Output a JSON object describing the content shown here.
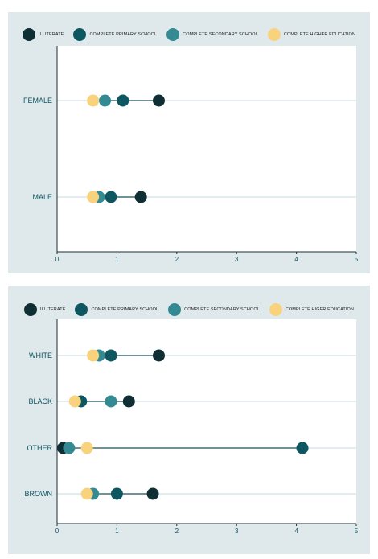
{
  "colors": {
    "panel_bg": "#dfe9ec",
    "plot_bg": "#ffffff",
    "axis": "#1a2e36",
    "gridline": "#c6dbe0",
    "connector": "#1f4e5b",
    "illiterate": "#0f2f35",
    "primary": "#0e5660",
    "secondary": "#348a92",
    "higher": "#f8d27c"
  },
  "chart_data": [
    {
      "type": "dot",
      "legend": [
        "ILLITERATE",
        "COMPLETE PRIMARY SCHOOL",
        "COMPLETE SECONDARY SCHOOL",
        "COMPLETE HIGHER EDUCATION"
      ],
      "legend_placement": "top",
      "categories": [
        "FEMALE",
        "MALE"
      ],
      "xlim": [
        0,
        5
      ],
      "xticks": [
        "0",
        "1",
        "2",
        "3",
        "4",
        "5"
      ],
      "grid": true,
      "series": [
        {
          "name": "ILLITERATE",
          "color_key": "illiterate",
          "values": [
            1.7,
            1.4
          ]
        },
        {
          "name": "COMPLETE PRIMARY SCHOOL",
          "color_key": "primary",
          "values": [
            1.1,
            0.9
          ]
        },
        {
          "name": "COMPLETE SECONDARY SCHOOL",
          "color_key": "secondary",
          "values": [
            0.8,
            0.7
          ]
        },
        {
          "name": "COMPLETE HIGHER EDUCATION",
          "color_key": "higher",
          "values": [
            0.6,
            0.6
          ]
        }
      ]
    },
    {
      "type": "dot",
      "legend": [
        "ILLITERATE",
        "COMPLETE PRIMARY SCHOOL",
        "COMPLETE SECONDARY SCHOOL",
        "COMPLETE HIGER EDUCATION"
      ],
      "legend_placement": "top",
      "categories": [
        "WHITE",
        "BLACK",
        "OTHER",
        "BROWN"
      ],
      "xlim": [
        0,
        5
      ],
      "xticks": [
        "0",
        "1",
        "2",
        "3",
        "4",
        "5"
      ],
      "grid": true,
      "series": [
        {
          "name": "ILLITERATE",
          "color_key": "illiterate",
          "values": [
            1.7,
            1.2,
            0.1,
            1.6
          ]
        },
        {
          "name": "COMPLETE PRIMARY SCHOOL",
          "color_key": "primary",
          "values": [
            0.9,
            0.4,
            4.1,
            1.0
          ]
        },
        {
          "name": "COMPLETE SECONDARY SCHOOL",
          "color_key": "secondary",
          "values": [
            0.7,
            0.9,
            0.2,
            0.6
          ]
        },
        {
          "name": "COMPLETE HIGER EDUCATION",
          "color_key": "higher",
          "values": [
            0.6,
            0.3,
            0.5,
            0.5
          ]
        }
      ]
    }
  ]
}
